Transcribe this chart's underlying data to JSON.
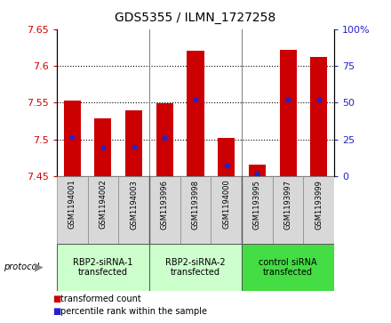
{
  "title": "GDS5355 / ILMN_1727258",
  "samples": [
    "GSM1194001",
    "GSM1194002",
    "GSM1194003",
    "GSM1193996",
    "GSM1193998",
    "GSM1194000",
    "GSM1193995",
    "GSM1193997",
    "GSM1193999"
  ],
  "bar_bottoms": [
    7.45,
    7.45,
    7.45,
    7.45,
    7.45,
    7.45,
    7.45,
    7.45,
    7.45
  ],
  "bar_tops": [
    7.553,
    7.528,
    7.539,
    7.549,
    7.621,
    7.502,
    7.466,
    7.622,
    7.612
  ],
  "percentile_vals": [
    7.503,
    7.488,
    7.49,
    7.502,
    7.554,
    7.464,
    7.453,
    7.554,
    7.554
  ],
  "ylim": [
    7.45,
    7.65
  ],
  "yticks": [
    7.45,
    7.5,
    7.55,
    7.6,
    7.65
  ],
  "ytick_labels": [
    "7.45",
    "7.5",
    "7.55",
    "7.6",
    "7.65"
  ],
  "right_ytick_pcts": [
    0,
    25,
    50,
    75,
    100
  ],
  "right_ytick_labels": [
    "0",
    "25",
    "50",
    "75",
    "100%"
  ],
  "bar_color": "#cc0000",
  "percentile_color": "#2222cc",
  "groups": [
    {
      "label": "RBP2-siRNA-1\ntransfected",
      "span": [
        0,
        3
      ],
      "color": "#ccffcc"
    },
    {
      "label": "RBP2-siRNA-2\ntransfected",
      "span": [
        3,
        6
      ],
      "color": "#ccffcc"
    },
    {
      "label": "control siRNA\ntransfected",
      "span": [
        6,
        9
      ],
      "color": "#44dd44"
    }
  ],
  "protocol_label": "protocol",
  "legend_items": [
    {
      "color": "#cc0000",
      "label": "transformed count"
    },
    {
      "color": "#2222cc",
      "label": "percentile rank within the sample"
    }
  ],
  "axis_color_left": "#cc0000",
  "axis_color_right": "#2222cc",
  "bar_width": 0.55,
  "sample_box_color": "#d8d8d8",
  "sample_box_edge": "#888888",
  "grid_linestyle": ":",
  "grid_linewidth": 0.8
}
